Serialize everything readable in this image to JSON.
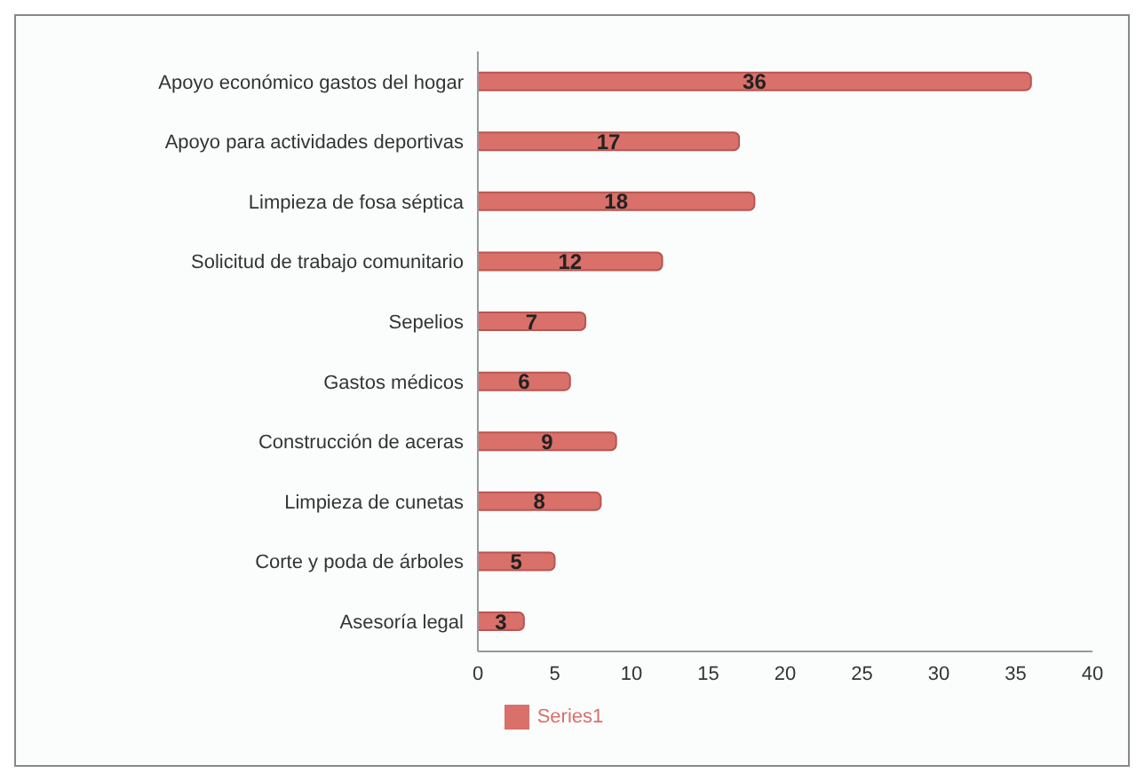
{
  "chart_data": {
    "type": "bar",
    "orientation": "horizontal",
    "categories": [
      "Apoyo económico gastos del hogar",
      "Apoyo para actividades deportivas",
      "Limpieza de fosa séptica",
      "Solicitud de trabajo comunitario",
      "Sepelios",
      "Gastos médicos",
      "Construcción de aceras",
      "Limpieza de cunetas",
      "Corte y poda de árboles",
      "Asesoría legal"
    ],
    "series": [
      {
        "name": "Series1",
        "color": "#d9706a",
        "values": [
          36,
          17,
          18,
          12,
          7,
          6,
          9,
          8,
          5,
          3
        ]
      }
    ],
    "xlim": [
      0,
      40
    ],
    "xticks": [
      0,
      5,
      10,
      15,
      20,
      25,
      30,
      35,
      40
    ],
    "data_labels": true,
    "legend": "bottom",
    "grid": false
  }
}
